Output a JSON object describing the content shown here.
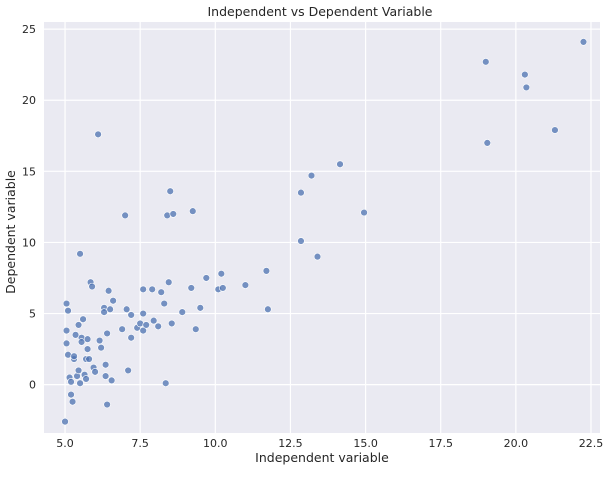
{
  "chart_data": {
    "type": "scatter",
    "title": "Independent vs Dependent Variable",
    "xlabel": "Independent variable",
    "ylabel": "Dependent variable",
    "xlim": [
      4.3,
      22.8
    ],
    "ylim": [
      -3.4,
      25.5
    ],
    "xticks": [
      5.0,
      7.5,
      10.0,
      12.5,
      15.0,
      17.5,
      20.0,
      22.5
    ],
    "xtick_labels": [
      "5.0",
      "7.5",
      "10.0",
      "12.5",
      "15.0",
      "17.5",
      "20.0",
      "22.5"
    ],
    "yticks": [
      0,
      5,
      10,
      15,
      20,
      25
    ],
    "ytick_labels": [
      "0",
      "5",
      "10",
      "15",
      "20",
      "25"
    ],
    "grid": true,
    "colors": {
      "background": "#eaeaf2",
      "grid": "#ffffff",
      "point": "#4c72b0"
    },
    "series": [
      {
        "points": [
          [
            5.0,
            -2.6
          ],
          [
            5.05,
            3.8
          ],
          [
            5.05,
            2.9
          ],
          [
            5.05,
            5.7
          ],
          [
            5.1,
            5.2
          ],
          [
            5.1,
            2.1
          ],
          [
            5.15,
            0.5
          ],
          [
            5.2,
            0.2
          ],
          [
            5.2,
            -0.7
          ],
          [
            5.25,
            -1.2
          ],
          [
            5.3,
            1.8
          ],
          [
            5.3,
            2.0
          ],
          [
            5.35,
            3.5
          ],
          [
            5.4,
            0.6
          ],
          [
            5.45,
            1.0
          ],
          [
            5.5,
            0.1
          ],
          [
            5.45,
            4.2
          ],
          [
            5.5,
            9.2
          ],
          [
            5.55,
            3.3
          ],
          [
            5.6,
            4.6
          ],
          [
            5.55,
            3.0
          ],
          [
            5.65,
            0.7
          ],
          [
            5.7,
            1.8
          ],
          [
            5.7,
            0.4
          ],
          [
            5.75,
            2.5
          ],
          [
            5.75,
            3.2
          ],
          [
            5.8,
            1.8
          ],
          [
            5.85,
            7.2
          ],
          [
            5.9,
            6.9
          ],
          [
            5.95,
            1.2
          ],
          [
            6.0,
            0.9
          ],
          [
            6.1,
            17.6
          ],
          [
            6.15,
            3.1
          ],
          [
            6.2,
            2.6
          ],
          [
            6.3,
            5.4
          ],
          [
            6.3,
            5.1
          ],
          [
            6.35,
            1.4
          ],
          [
            6.35,
            0.6
          ],
          [
            6.4,
            -1.4
          ],
          [
            6.4,
            3.6
          ],
          [
            6.45,
            6.6
          ],
          [
            6.5,
            5.3
          ],
          [
            6.55,
            0.3
          ],
          [
            6.6,
            5.9
          ],
          [
            6.9,
            3.9
          ],
          [
            7.0,
            11.9
          ],
          [
            7.05,
            5.3
          ],
          [
            7.1,
            1.0
          ],
          [
            7.2,
            3.3
          ],
          [
            7.2,
            4.9
          ],
          [
            7.4,
            4.0
          ],
          [
            7.5,
            4.3
          ],
          [
            7.6,
            6.7
          ],
          [
            7.6,
            3.8
          ],
          [
            7.6,
            5.0
          ],
          [
            7.7,
            4.2
          ],
          [
            7.9,
            6.7
          ],
          [
            7.95,
            4.5
          ],
          [
            8.1,
            4.1
          ],
          [
            8.2,
            6.5
          ],
          [
            8.3,
            5.7
          ],
          [
            8.35,
            0.1
          ],
          [
            8.4,
            11.9
          ],
          [
            8.45,
            7.2
          ],
          [
            8.5,
            13.6
          ],
          [
            8.55,
            4.3
          ],
          [
            8.6,
            12.0
          ],
          [
            8.9,
            5.1
          ],
          [
            9.2,
            6.8
          ],
          [
            9.25,
            12.2
          ],
          [
            9.35,
            3.9
          ],
          [
            9.5,
            5.4
          ],
          [
            9.7,
            7.5
          ],
          [
            10.1,
            6.7
          ],
          [
            10.2,
            7.8
          ],
          [
            10.25,
            6.8
          ],
          [
            11.0,
            7.0
          ],
          [
            11.7,
            8.0
          ],
          [
            11.75,
            5.3
          ],
          [
            12.85,
            13.5
          ],
          [
            12.85,
            10.1
          ],
          [
            13.2,
            14.7
          ],
          [
            13.4,
            9.0
          ],
          [
            14.15,
            15.5
          ],
          [
            14.95,
            12.1
          ],
          [
            19.0,
            22.7
          ],
          [
            19.05,
            17.0
          ],
          [
            20.3,
            21.8
          ],
          [
            20.35,
            20.9
          ],
          [
            21.3,
            17.9
          ],
          [
            22.25,
            24.1
          ]
        ]
      }
    ]
  }
}
